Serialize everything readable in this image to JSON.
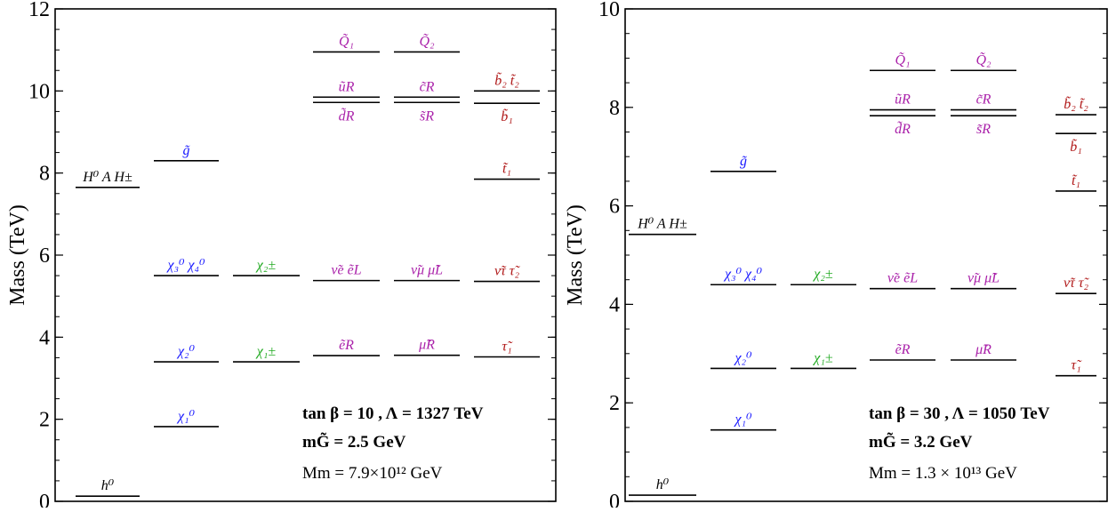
{
  "chart_data": [
    {
      "type": "mass-spectrum",
      "ylabel": "Mass (TeV)",
      "ylim": [
        0,
        12
      ],
      "yticks": [
        "0",
        "2",
        "4",
        "6",
        "8",
        "10",
        "12"
      ],
      "colors": {
        "higgs": "#000000",
        "gaugino": "#1a1aff",
        "chargino": "#22aa22",
        "squark": "#aa22aa",
        "slepton": "#aa22aa",
        "third": "#b01818"
      },
      "columns": [
        {
          "levels": [
            {
              "mass": 7.65,
              "label": "H⁰ A H±",
              "pos": "above",
              "color": "higgs"
            },
            {
              "mass": 0.125,
              "label": "h⁰",
              "pos": "above",
              "color": "higgs"
            }
          ]
        },
        {
          "levels": [
            {
              "mass": 8.3,
              "label": "g̃",
              "pos": "above",
              "color": "gaugino"
            },
            {
              "mass": 5.5,
              "label": "χ₃⁰  χ₄⁰",
              "pos": "above",
              "color": "gaugino"
            },
            {
              "mass": 3.4,
              "label": "χ₂⁰",
              "pos": "above",
              "color": "gaugino"
            },
            {
              "mass": 1.82,
              "label": "χ₁⁰",
              "pos": "above",
              "color": "gaugino"
            }
          ]
        },
        {
          "levels": [
            {
              "mass": 5.5,
              "label": "χ₂±",
              "pos": "above",
              "color": "chargino"
            },
            {
              "mass": 3.4,
              "label": "χ₁±",
              "pos": "above",
              "color": "chargino"
            }
          ]
        },
        {
          "levels": [
            {
              "mass": 10.95,
              "label": "Q̃₁",
              "pos": "above",
              "color": "squark"
            },
            {
              "mass": 9.85,
              "label": "ũR",
              "pos": "above",
              "color": "squark"
            },
            {
              "mass": 9.72,
              "label": "d̃R",
              "pos": "below",
              "color": "squark"
            },
            {
              "mass": 5.38,
              "label": "ν̃e ẽL",
              "pos": "above",
              "color": "slepton"
            },
            {
              "mass": 3.55,
              "label": "ẽR",
              "pos": "above",
              "color": "slepton"
            }
          ]
        },
        {
          "levels": [
            {
              "mass": 10.95,
              "label": "Q̃₂",
              "pos": "above",
              "color": "squark"
            },
            {
              "mass": 9.85,
              "label": "c̃R",
              "pos": "above",
              "color": "squark"
            },
            {
              "mass": 9.72,
              "label": "s̃R",
              "pos": "below",
              "color": "squark"
            },
            {
              "mass": 5.38,
              "label": "ν̃μ μ̃L",
              "pos": "above",
              "color": "slepton"
            },
            {
              "mass": 3.56,
              "label": "μ̃R",
              "pos": "above",
              "color": "slepton"
            }
          ]
        },
        {
          "levels": [
            {
              "mass": 10.0,
              "label": "b̃₂ t̃₂",
              "pos": "above",
              "color": "third"
            },
            {
              "mass": 9.7,
              "label": "b̃₁",
              "pos": "below",
              "color": "third"
            },
            {
              "mass": 7.85,
              "label": "t̃₁",
              "pos": "above",
              "color": "third"
            },
            {
              "mass": 5.36,
              "label": "ν̃τ τ̃₂",
              "pos": "above",
              "color": "third"
            },
            {
              "mass": 3.52,
              "label": "τ̃₁",
              "pos": "above",
              "color": "third"
            }
          ]
        }
      ],
      "annotations": {
        "line1": "tan β = 10 ,   Λ = 1327 TeV",
        "line2": "mG̃ = 2.5 GeV",
        "line3": "Mm = 7.9×10¹² GeV"
      }
    },
    {
      "type": "mass-spectrum",
      "ylabel": "Mass (TeV)",
      "ylim": [
        0,
        10
      ],
      "yticks": [
        "0",
        "2",
        "4",
        "6",
        "8",
        "10"
      ],
      "colors": {
        "higgs": "#000000",
        "gaugino": "#1a1aff",
        "chargino": "#22aa22",
        "squark": "#aa22aa",
        "slepton": "#aa22aa",
        "third": "#b01818"
      },
      "columns": [
        {
          "levels": [
            {
              "mass": 5.42,
              "label": "H⁰ A H±",
              "pos": "above",
              "color": "higgs"
            },
            {
              "mass": 0.125,
              "label": "h⁰",
              "pos": "above",
              "color": "higgs"
            }
          ]
        },
        {
          "levels": [
            {
              "mass": 6.7,
              "label": "g̃",
              "pos": "above",
              "color": "gaugino"
            },
            {
              "mass": 4.4,
              "label": "χ₃⁰ χ₄⁰",
              "pos": "above",
              "color": "gaugino"
            },
            {
              "mass": 2.7,
              "label": "χ₂⁰",
              "pos": "above",
              "color": "gaugino"
            },
            {
              "mass": 1.45,
              "label": "χ₁⁰",
              "pos": "above",
              "color": "gaugino"
            }
          ]
        },
        {
          "levels": [
            {
              "mass": 4.4,
              "label": "χ₂±",
              "pos": "above",
              "color": "chargino"
            },
            {
              "mass": 2.7,
              "label": "χ₁±",
              "pos": "above",
              "color": "chargino"
            }
          ]
        },
        {
          "levels": [
            {
              "mass": 8.75,
              "label": "Q̃₁",
              "pos": "above",
              "color": "squark"
            },
            {
              "mass": 7.95,
              "label": "ũR",
              "pos": "above",
              "color": "squark"
            },
            {
              "mass": 7.83,
              "label": "d̃R",
              "pos": "below",
              "color": "squark"
            },
            {
              "mass": 4.32,
              "label": "ν̃e ẽL",
              "pos": "above",
              "color": "slepton"
            },
            {
              "mass": 2.87,
              "label": "ẽR",
              "pos": "above",
              "color": "slepton"
            }
          ]
        },
        {
          "levels": [
            {
              "mass": 8.75,
              "label": "Q̃₂",
              "pos": "above",
              "color": "squark"
            },
            {
              "mass": 7.95,
              "label": "c̃R",
              "pos": "above",
              "color": "squark"
            },
            {
              "mass": 7.83,
              "label": "s̃R",
              "pos": "below",
              "color": "squark"
            },
            {
              "mass": 4.32,
              "label": "ν̃μ μ̃L",
              "pos": "above",
              "color": "slepton"
            },
            {
              "mass": 2.87,
              "label": "μ̃R",
              "pos": "above",
              "color": "slepton"
            }
          ]
        },
        {
          "levels": [
            {
              "mass": 7.85,
              "label": "b̃₂ t̃₂",
              "pos": "above",
              "color": "third"
            },
            {
              "mass": 7.47,
              "label": "b̃₁",
              "pos": "below",
              "color": "third"
            },
            {
              "mass": 6.3,
              "label": "t̃₁",
              "pos": "above",
              "color": "third"
            },
            {
              "mass": 4.22,
              "label": "ν̃τ τ̃₂",
              "pos": "above",
              "color": "third"
            },
            {
              "mass": 2.55,
              "label": "τ̃₁",
              "pos": "above",
              "color": "third"
            }
          ]
        }
      ],
      "annotations": {
        "line1": "tan β = 30 ,   Λ = 1050 TeV",
        "line2": "mG̃ = 3.2 GeV",
        "line3": "Mm  =  1.3 × 10¹³ GeV"
      }
    }
  ]
}
